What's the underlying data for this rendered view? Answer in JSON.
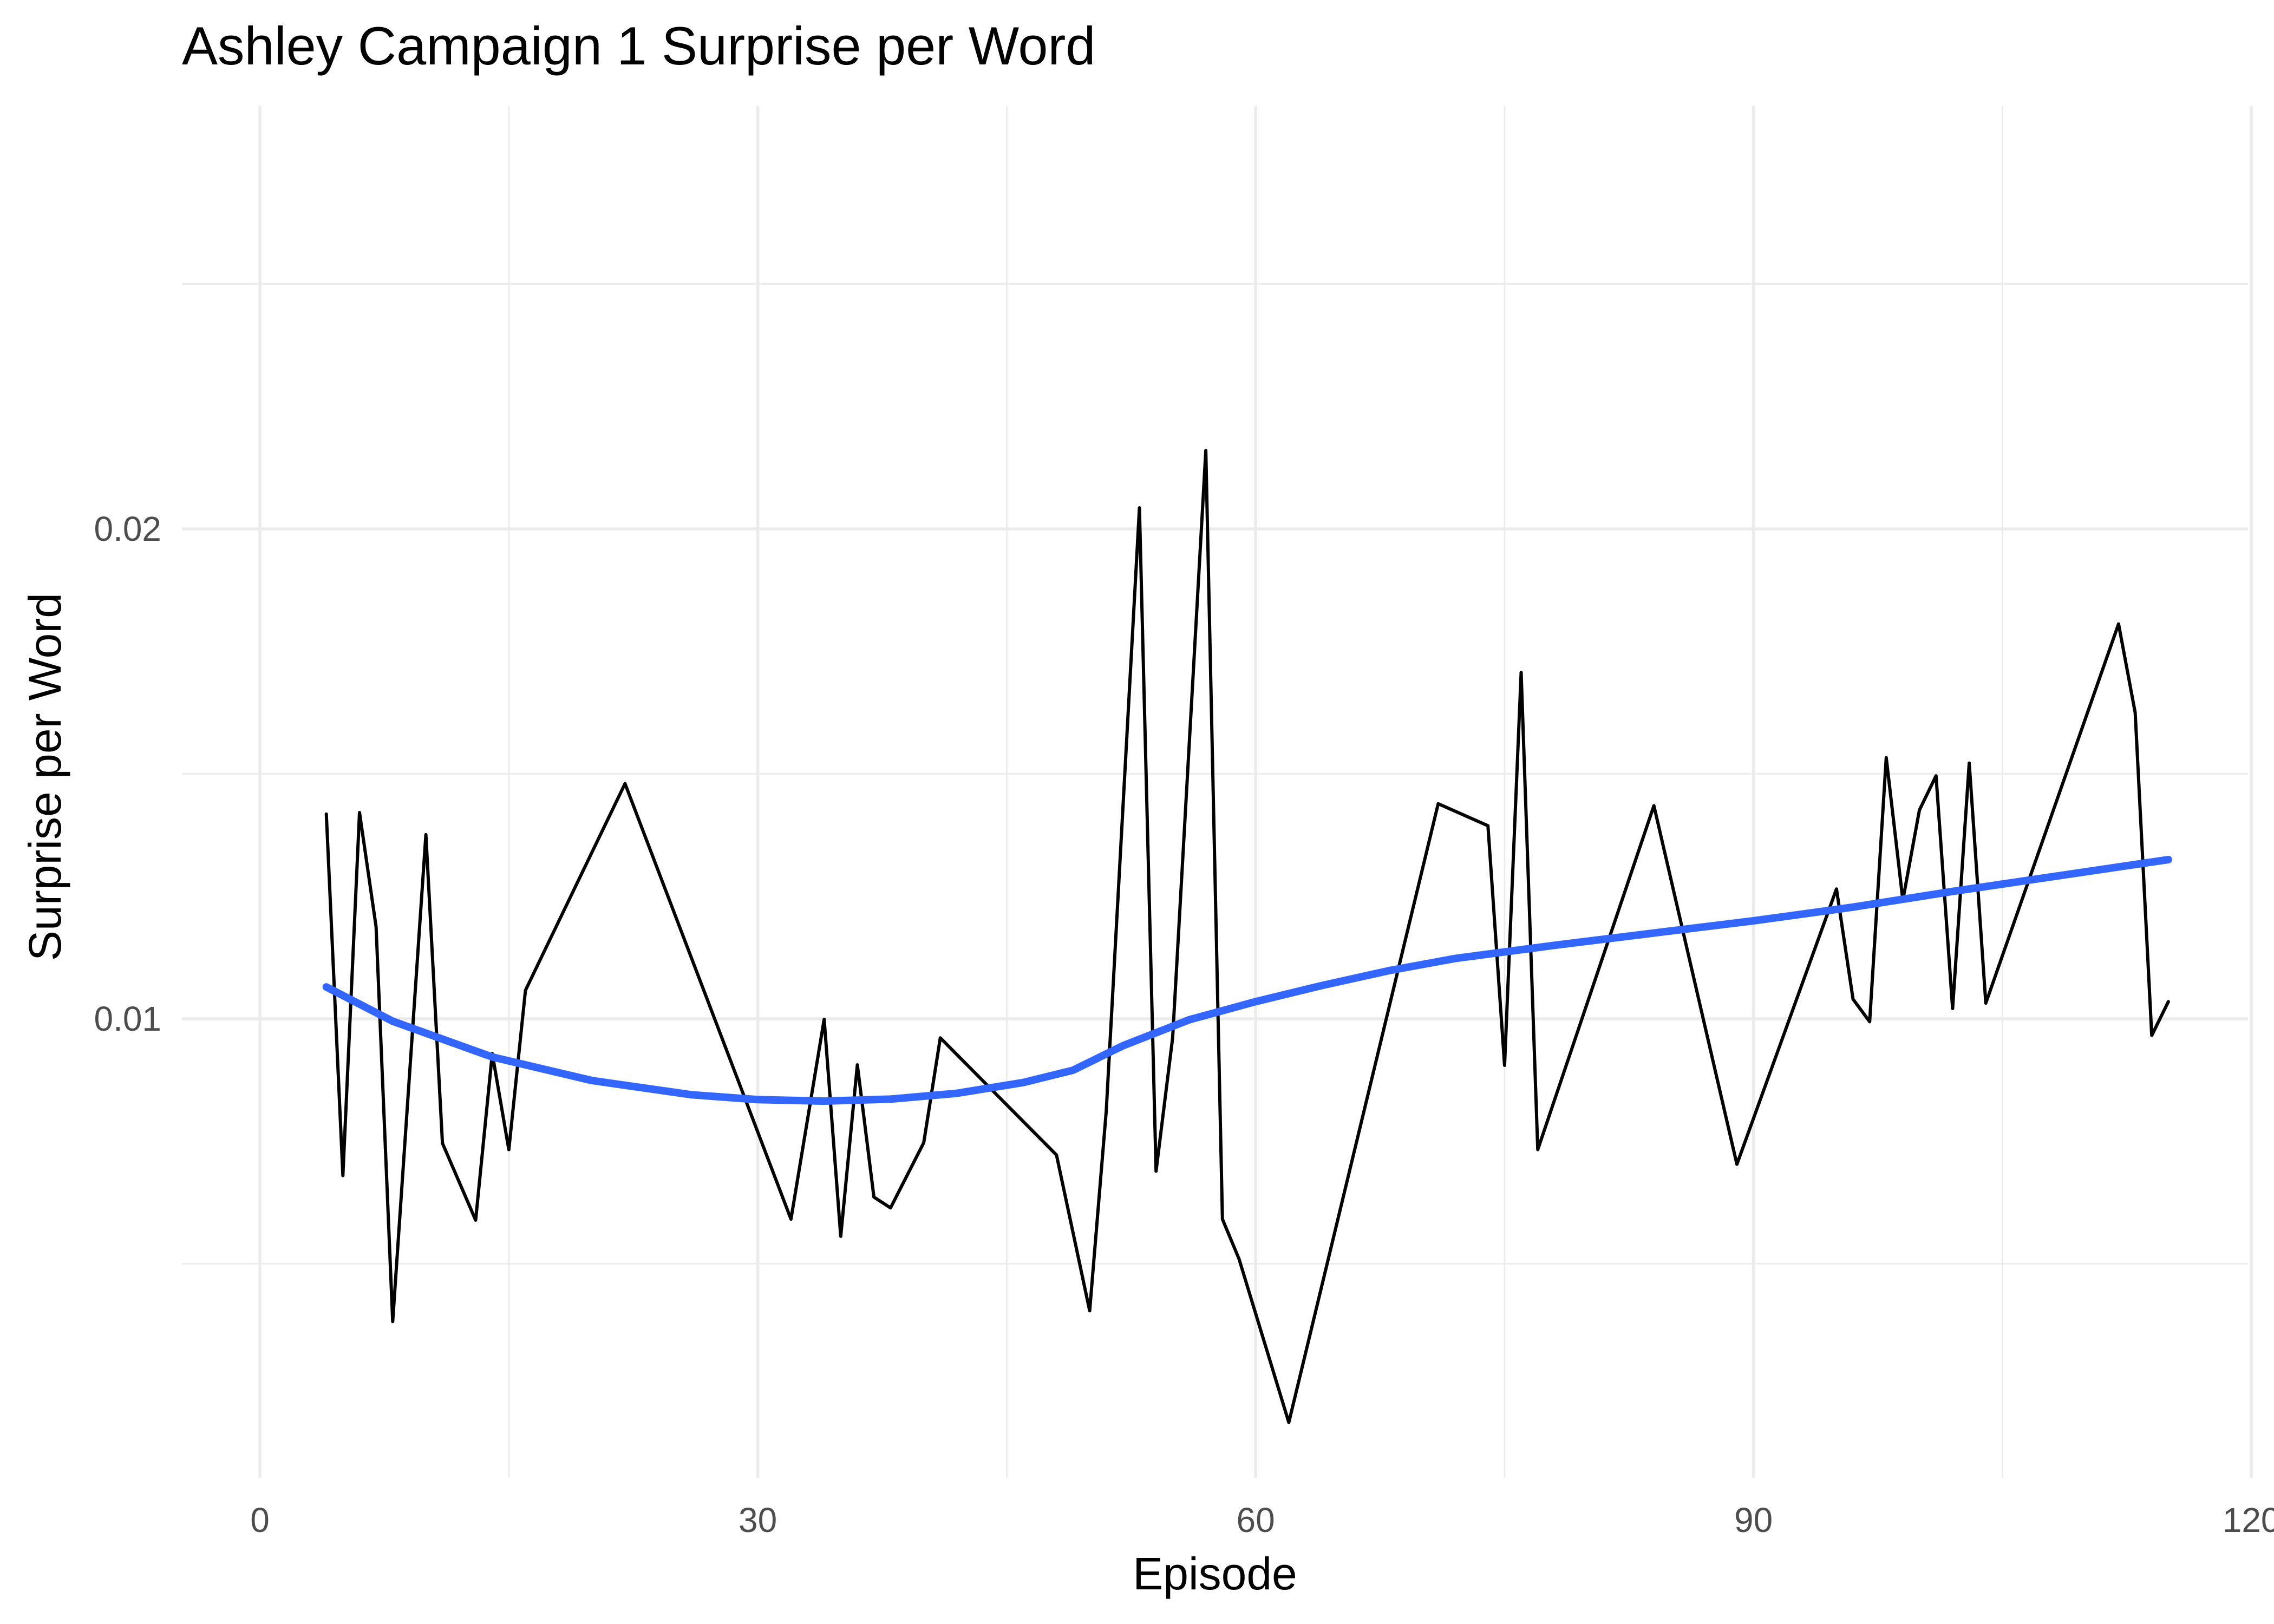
{
  "chart_data": {
    "type": "line",
    "title": "Ashley Campaign 1 Surprise per Word",
    "xlabel": "Episode",
    "ylabel": "Surprise per Word",
    "xlim": [
      -4.7,
      119.8
    ],
    "ylim": [
      0.00063,
      0.02863
    ],
    "x_ticks": [
      0,
      30,
      60,
      90,
      120
    ],
    "x_tick_labels": [
      "0",
      "30",
      "60",
      "90",
      "120"
    ],
    "y_ticks": [
      0.01,
      0.02
    ],
    "y_tick_labels": [
      "0.01",
      "0.02"
    ],
    "grid": true,
    "legend": "none",
    "colors": {
      "series": "#000000",
      "smooth": "#3366FF"
    },
    "series": [
      {
        "x": [
          4,
          5,
          6,
          7,
          8,
          10,
          11,
          13,
          14,
          15,
          16,
          22,
          32,
          34,
          35,
          36,
          37,
          38,
          40,
          41,
          48,
          50,
          51,
          53,
          54,
          55,
          57,
          58,
          59,
          62,
          71,
          74,
          75,
          76,
          77,
          84,
          89,
          95,
          96,
          97,
          98,
          99,
          100,
          101,
          102,
          103,
          104,
          112,
          113,
          114,
          115
        ],
        "values": [
          0.01418,
          0.0068,
          0.01421,
          0.01188,
          0.00382,
          0.01376,
          0.00746,
          0.00589,
          0.00929,
          0.00733,
          0.01058,
          0.0148,
          0.00591,
          0.00999,
          0.00556,
          0.00906,
          0.00636,
          0.00614,
          0.00747,
          0.00961,
          0.00722,
          0.00404,
          0.00812,
          0.02043,
          0.00689,
          0.00961,
          0.0216,
          0.00591,
          0.0051,
          0.00176,
          0.01439,
          0.01394,
          0.00905,
          0.01707,
          0.00733,
          0.01435,
          0.00703,
          0.01265,
          0.0104,
          0.00994,
          0.01533,
          0.01242,
          0.01426,
          0.01496,
          0.01021,
          0.01522,
          0.01032,
          0.01806,
          0.01625,
          0.00966,
          0.01035
        ]
      },
      {
        "x": [
          4,
          8,
          14,
          20,
          26,
          30,
          34,
          38,
          42,
          46,
          49,
          52,
          56,
          60,
          64,
          68,
          72,
          78,
          84,
          90,
          96,
          102,
          108,
          115
        ],
        "values": [
          0.01065,
          0.00995,
          0.00922,
          0.00874,
          0.00845,
          0.00835,
          0.00832,
          0.00836,
          0.00848,
          0.0087,
          0.00895,
          0.00945,
          0.00998,
          0.01035,
          0.01068,
          0.01098,
          0.01123,
          0.0115,
          0.01175,
          0.012,
          0.01228,
          0.0126,
          0.0129,
          0.01325
        ]
      }
    ]
  }
}
